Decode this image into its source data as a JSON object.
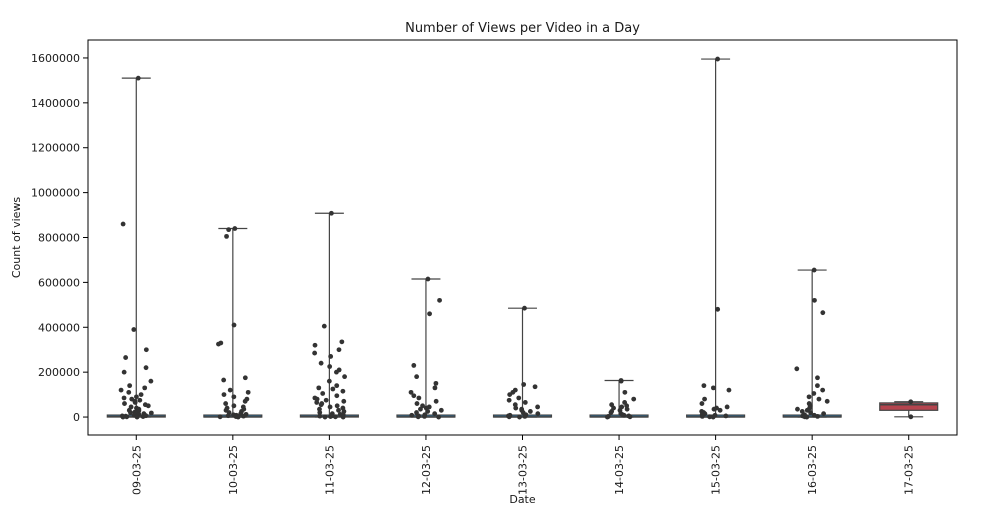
{
  "chart_data": {
    "type": "box",
    "title": "Number of Views per Video in a Day",
    "xlabel": "Date",
    "ylabel": "Count of views",
    "ylim": [
      -80000,
      1680000
    ],
    "yticks": [
      0,
      200000,
      400000,
      600000,
      800000,
      1000000,
      1200000,
      1400000,
      1600000
    ],
    "ytick_labels": [
      "0",
      "200000",
      "400000",
      "600000",
      "800000",
      "1000000",
      "1200000",
      "1400000",
      "1600000"
    ],
    "grid": false,
    "legend": "none",
    "colors": {
      "box_default": "#1f77b4",
      "box_highlight": "#b5444e",
      "points": "#333333",
      "lines": "#444444"
    },
    "categories": [
      "09-03-25",
      "10-03-25",
      "11-03-25",
      "12-03-25",
      "13-03-25",
      "14-03-25",
      "15-03-25",
      "16-03-25",
      "17-03-25"
    ],
    "boxes": [
      {
        "date": "09-03-25",
        "min": 0,
        "q1": 0,
        "median": 2000,
        "q3": 6000,
        "max": 1510000
      },
      {
        "date": "10-03-25",
        "min": 0,
        "q1": 0,
        "median": 1000,
        "q3": 4000,
        "max": 840000
      },
      {
        "date": "11-03-25",
        "min": 0,
        "q1": 0,
        "median": 2000,
        "q3": 6000,
        "max": 908000
      },
      {
        "date": "12-03-25",
        "min": 0,
        "q1": 0,
        "median": 1000,
        "q3": 4000,
        "max": 615000
      },
      {
        "date": "13-03-25",
        "min": 0,
        "q1": 0,
        "median": 1000,
        "q3": 3000,
        "max": 485000
      },
      {
        "date": "14-03-25",
        "min": 0,
        "q1": 0,
        "median": 1000,
        "q3": 3000,
        "max": 163000
      },
      {
        "date": "15-03-25",
        "min": 0,
        "q1": 0,
        "median": 1000,
        "q3": 4000,
        "max": 1595000
      },
      {
        "date": "16-03-25",
        "min": 0,
        "q1": 0,
        "median": 1000,
        "q3": 4000,
        "max": 655000
      },
      {
        "date": "17-03-25",
        "min": 1000,
        "q1": 30000,
        "median": 55000,
        "q3": 63000,
        "max": 68000,
        "highlight": true
      }
    ],
    "points": [
      [
        1510000,
        860000,
        390000,
        300000,
        265000,
        220000,
        200000,
        160000,
        140000,
        130000,
        120000,
        110000,
        100000,
        90000,
        85000,
        80000,
        75000,
        70000,
        65000,
        60000,
        55000,
        50000,
        45000,
        40000,
        35000,
        30000,
        28000,
        25000,
        22000,
        20000,
        18000,
        15000,
        12000,
        10000,
        8000,
        6000,
        5000,
        4000,
        3000,
        2000,
        1000,
        0,
        0
      ],
      [
        840000,
        835000,
        805000,
        410000,
        330000,
        325000,
        175000,
        165000,
        120000,
        110000,
        100000,
        90000,
        80000,
        70000,
        60000,
        50000,
        45000,
        40000,
        35000,
        30000,
        25000,
        20000,
        15000,
        12000,
        10000,
        8000,
        6000,
        4000,
        2000,
        1000,
        0
      ],
      [
        908000,
        405000,
        335000,
        320000,
        300000,
        285000,
        270000,
        240000,
        225000,
        210000,
        200000,
        180000,
        160000,
        140000,
        130000,
        125000,
        115000,
        105000,
        95000,
        85000,
        80000,
        75000,
        70000,
        65000,
        60000,
        55000,
        50000,
        45000,
        40000,
        35000,
        30000,
        25000,
        20000,
        15000,
        12000,
        10000,
        8000,
        6000,
        4000,
        2000,
        1000,
        0,
        0
      ],
      [
        615000,
        520000,
        460000,
        230000,
        180000,
        150000,
        130000,
        110000,
        95000,
        85000,
        70000,
        60000,
        50000,
        45000,
        40000,
        35000,
        30000,
        25000,
        20000,
        15000,
        10000,
        8000,
        5000,
        3000,
        1000,
        0
      ],
      [
        485000,
        145000,
        135000,
        120000,
        110000,
        100000,
        85000,
        75000,
        65000,
        55000,
        45000,
        40000,
        35000,
        30000,
        25000,
        20000,
        15000,
        10000,
        8000,
        5000,
        3000,
        1000,
        0
      ],
      [
        163000,
        160000,
        110000,
        80000,
        65000,
        55000,
        50000,
        45000,
        40000,
        35000,
        30000,
        25000,
        20000,
        15000,
        10000,
        8000,
        5000,
        3000,
        1000,
        0
      ],
      [
        1595000,
        480000,
        140000,
        130000,
        120000,
        80000,
        60000,
        45000,
        40000,
        35000,
        30000,
        25000,
        20000,
        15000,
        10000,
        8000,
        5000,
        3000,
        1000,
        0
      ],
      [
        655000,
        520000,
        465000,
        215000,
        175000,
        140000,
        120000,
        105000,
        90000,
        80000,
        70000,
        60000,
        50000,
        40000,
        35000,
        30000,
        25000,
        20000,
        15000,
        10000,
        8000,
        5000,
        3000,
        1000,
        0
      ],
      [
        68000,
        1000
      ]
    ]
  }
}
